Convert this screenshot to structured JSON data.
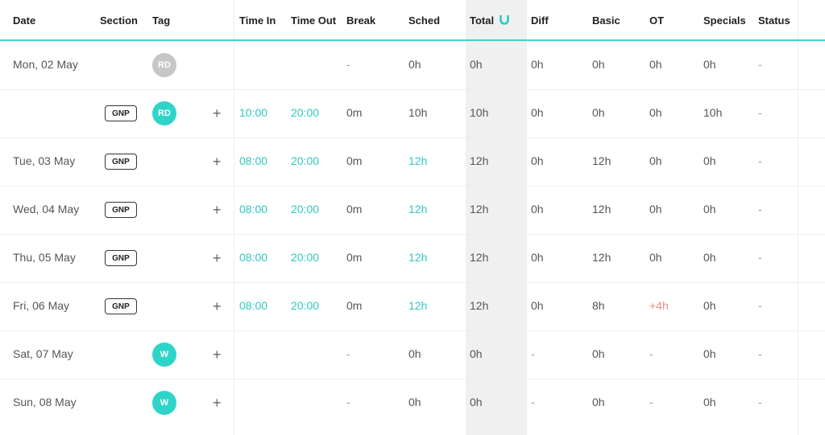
{
  "header": {
    "date": "Date",
    "section": "Section",
    "tag": "Tag",
    "time_in": "Time In",
    "time_out": "Time Out",
    "break": "Break",
    "sched": "Sched",
    "total": "Total",
    "diff": "Diff",
    "basic": "Basic",
    "ot": "OT",
    "specials": "Specials",
    "status": "Status"
  },
  "rows": [
    {
      "date": "Mon, 02 May",
      "section": "",
      "tag": "RD",
      "time_in": "",
      "time_out": "",
      "break": "-",
      "sched": "0h",
      "total": "0h",
      "diff": "0h",
      "basic": "0h",
      "ot": "0h",
      "specials": "0h",
      "status": "-"
    },
    {
      "date": "",
      "section": "GNP",
      "tag": "RD",
      "plus": "+",
      "time_in": "10:00",
      "time_out": "20:00",
      "break": "0m",
      "sched": "10h",
      "total": "10h",
      "diff": "0h",
      "basic": "0h",
      "ot": "0h",
      "specials": "10h",
      "status": "-"
    },
    {
      "date": "Tue, 03 May",
      "section": "GNP",
      "tag": "",
      "plus": "+",
      "time_in": "08:00",
      "time_out": "20:00",
      "break": "0m",
      "sched": "12h",
      "total": "12h",
      "diff": "0h",
      "basic": "12h",
      "ot": "0h",
      "specials": "0h",
      "status": "-"
    },
    {
      "date": "Wed, 04 May",
      "section": "GNP",
      "tag": "",
      "plus": "+",
      "time_in": "08:00",
      "time_out": "20:00",
      "break": "0m",
      "sched": "12h",
      "total": "12h",
      "diff": "0h",
      "basic": "12h",
      "ot": "0h",
      "specials": "0h",
      "status": "-"
    },
    {
      "date": "Thu, 05 May",
      "section": "GNP",
      "tag": "",
      "plus": "+",
      "time_in": "08:00",
      "time_out": "20:00",
      "break": "0m",
      "sched": "12h",
      "total": "12h",
      "diff": "0h",
      "basic": "12h",
      "ot": "0h",
      "specials": "0h",
      "status": "-"
    },
    {
      "date": "Fri, 06 May",
      "section": "GNP",
      "tag": "",
      "plus": "+",
      "time_in": "08:00",
      "time_out": "20:00",
      "break": "0m",
      "sched": "12h",
      "total": "12h",
      "diff": "0h",
      "basic": "8h",
      "ot": "+4h",
      "specials": "0h",
      "status": "-"
    },
    {
      "date": "Sat, 07 May",
      "section": "",
      "tag": "W",
      "plus": "+",
      "time_in": "",
      "time_out": "",
      "break": "-",
      "sched": "0h",
      "total": "0h",
      "diff": "-",
      "basic": "0h",
      "ot": "-",
      "specials": "0h",
      "status": "-"
    },
    {
      "date": "Sun, 08 May",
      "section": "",
      "tag": "W",
      "plus": "+",
      "time_in": "",
      "time_out": "",
      "break": "-",
      "sched": "0h",
      "total": "0h",
      "diff": "-",
      "basic": "0h",
      "ot": "-",
      "specials": "0h",
      "status": "-"
    }
  ],
  "icons": {
    "total_sort": "magnet-icon",
    "add": "plus-icon"
  },
  "colors": {
    "accent": "#2fd4c8",
    "rest_day": "#c6c6c6",
    "overtime": "#f08a8a",
    "total_column": "#f0f0f0"
  }
}
